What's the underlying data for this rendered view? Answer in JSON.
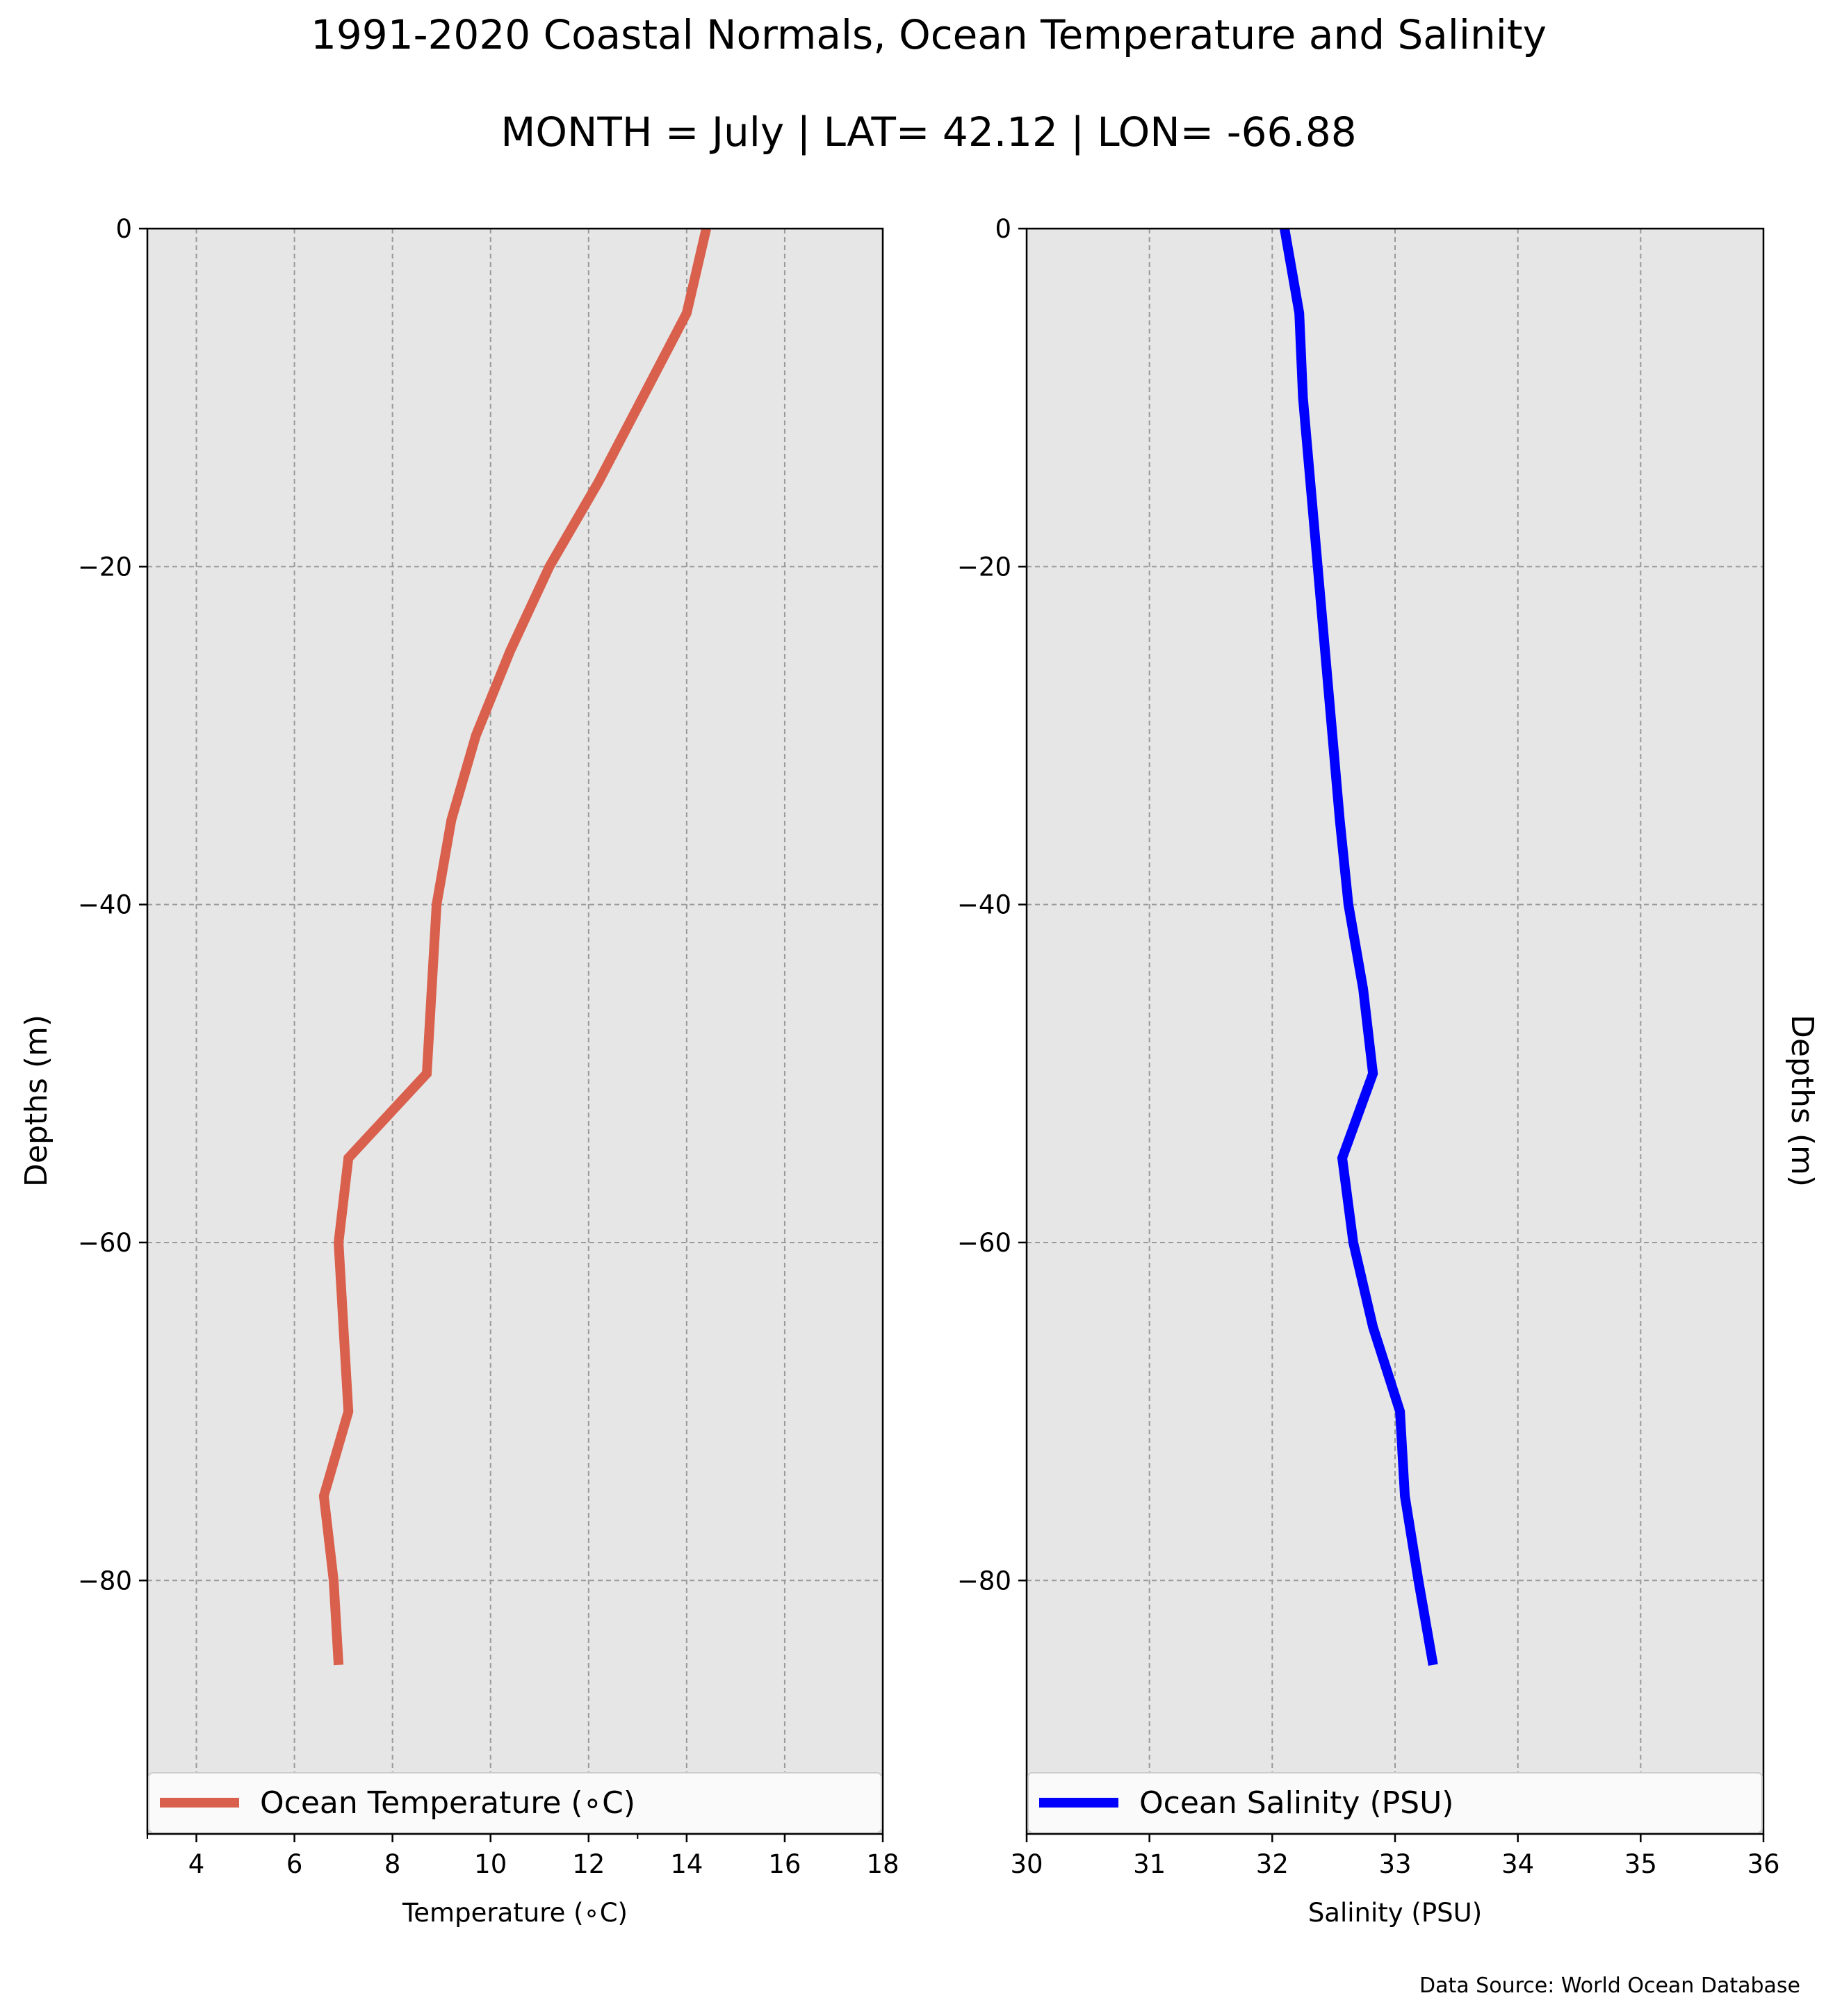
{
  "title": "1991-2020 Coastal Normals, Ocean Temperature and Salinity",
  "subtitle": "MONTH = July | LAT= 42.12 | LON= -66.88",
  "source": "Data Source: World Ocean Database",
  "colors": {
    "panel_bg": "#e6e6e6",
    "temperature": "#d9604c",
    "salinity": "#0000ff",
    "grid": "#9a9a9a"
  },
  "chart_data": [
    {
      "type": "line",
      "xlabel": "Temperature (∘C)",
      "ylabel": "Depths (m)",
      "xlim": [
        3,
        18
      ],
      "ylim": [
        -95,
        0
      ],
      "x_ticks": [
        "4",
        "6",
        "8",
        "10",
        "12",
        "14",
        "16",
        "18"
      ],
      "y_ticks": [
        "0",
        "−20",
        "−40",
        "−60",
        "−80"
      ],
      "grid": true,
      "legend_position": "bottom",
      "series": [
        {
          "name": "Ocean Temperature (∘C)",
          "x": [
            14.4,
            14.0,
            13.1,
            12.2,
            11.2,
            10.4,
            9.7,
            9.2,
            8.9,
            8.7,
            7.1,
            6.9,
            7.0,
            7.1,
            6.6,
            6.8,
            6.9
          ],
          "y": [
            0,
            -5,
            -10,
            -15,
            -20,
            -25,
            -30,
            -35,
            -40,
            -50,
            -55,
            -60,
            -65,
            -70,
            -75,
            -80,
            -85
          ]
        }
      ]
    },
    {
      "type": "line",
      "xlabel": "Salinity (PSU)",
      "ylabel": "Depths (m)",
      "xlim": [
        30,
        36
      ],
      "ylim": [
        -95,
        0
      ],
      "x_ticks": [
        "30",
        "31",
        "32",
        "33",
        "34",
        "35",
        "36"
      ],
      "y_ticks": [
        "0",
        "−20",
        "−40",
        "−60",
        "−80"
      ],
      "grid": true,
      "legend_position": "bottom",
      "series": [
        {
          "name": "Ocean Salinity (PSU)",
          "x": [
            32.1,
            32.22,
            32.25,
            32.31,
            32.37,
            32.43,
            32.49,
            32.55,
            32.62,
            32.74,
            32.82,
            32.57,
            32.66,
            32.82,
            33.04,
            33.08,
            33.19,
            33.31
          ],
          "y": [
            0,
            -5,
            -10,
            -15,
            -20,
            -25,
            -30,
            -35,
            -40,
            -45,
            -50,
            -55,
            -60,
            -65,
            -70,
            -75,
            -80,
            -85
          ]
        }
      ]
    }
  ]
}
